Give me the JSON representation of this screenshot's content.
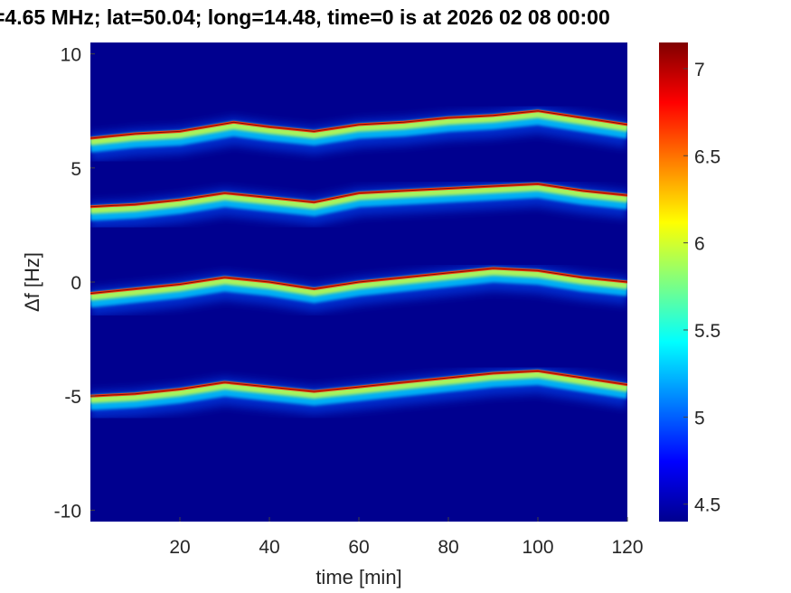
{
  "chart_data": {
    "type": "heatmap",
    "title": "=4.65 MHz;  lat=50.04; long=14.48, time=0 is at 2026 02 08 00:00",
    "xlabel": "time [min]",
    "ylabel": "Δf [Hz]",
    "xlim": [
      0,
      120
    ],
    "ylim": [
      -10.5,
      10.5
    ],
    "x_ticks": [
      20,
      40,
      60,
      80,
      100,
      120
    ],
    "y_ticks": [
      10,
      5,
      0,
      -5,
      -10
    ],
    "colorbar": {
      "colormap": "jet",
      "range": [
        4.4,
        7.15
      ],
      "ticks": [
        7,
        6.5,
        6,
        5.5,
        5,
        4.5
      ]
    },
    "background_level": 4.45,
    "grid": false,
    "traces": [
      {
        "name_hidden": "",
        "peak_level": 7.0,
        "points": [
          [
            0,
            6.3
          ],
          [
            10,
            6.5
          ],
          [
            20,
            6.6
          ],
          [
            32,
            7.0
          ],
          [
            40,
            6.8
          ],
          [
            50,
            6.6
          ],
          [
            60,
            6.9
          ],
          [
            70,
            7.0
          ],
          [
            80,
            7.2
          ],
          [
            90,
            7.3
          ],
          [
            100,
            7.5
          ],
          [
            110,
            7.2
          ],
          [
            120,
            6.9
          ]
        ]
      },
      {
        "name_hidden": "",
        "peak_level": 6.9,
        "points": [
          [
            0,
            3.3
          ],
          [
            10,
            3.4
          ],
          [
            20,
            3.6
          ],
          [
            30,
            3.9
          ],
          [
            40,
            3.7
          ],
          [
            50,
            3.5
          ],
          [
            60,
            3.9
          ],
          [
            70,
            4.0
          ],
          [
            80,
            4.1
          ],
          [
            90,
            4.2
          ],
          [
            100,
            4.3
          ],
          [
            110,
            4.0
          ],
          [
            120,
            3.8
          ]
        ]
      },
      {
        "name_hidden": "",
        "peak_level": 6.9,
        "points": [
          [
            0,
            -0.5
          ],
          [
            10,
            -0.3
          ],
          [
            20,
            -0.1
          ],
          [
            30,
            0.2
          ],
          [
            40,
            0.0
          ],
          [
            50,
            -0.3
          ],
          [
            60,
            0.0
          ],
          [
            70,
            0.2
          ],
          [
            80,
            0.4
          ],
          [
            90,
            0.6
          ],
          [
            100,
            0.5
          ],
          [
            110,
            0.2
          ],
          [
            120,
            0.0
          ]
        ]
      },
      {
        "name_hidden": "",
        "peak_level": 6.9,
        "points": [
          [
            0,
            -5.0
          ],
          [
            10,
            -4.9
          ],
          [
            20,
            -4.7
          ],
          [
            30,
            -4.4
          ],
          [
            40,
            -4.6
          ],
          [
            50,
            -4.8
          ],
          [
            60,
            -4.6
          ],
          [
            70,
            -4.4
          ],
          [
            80,
            -4.2
          ],
          [
            90,
            -4.0
          ],
          [
            100,
            -3.9
          ],
          [
            110,
            -4.2
          ],
          [
            120,
            -4.5
          ]
        ]
      }
    ]
  }
}
